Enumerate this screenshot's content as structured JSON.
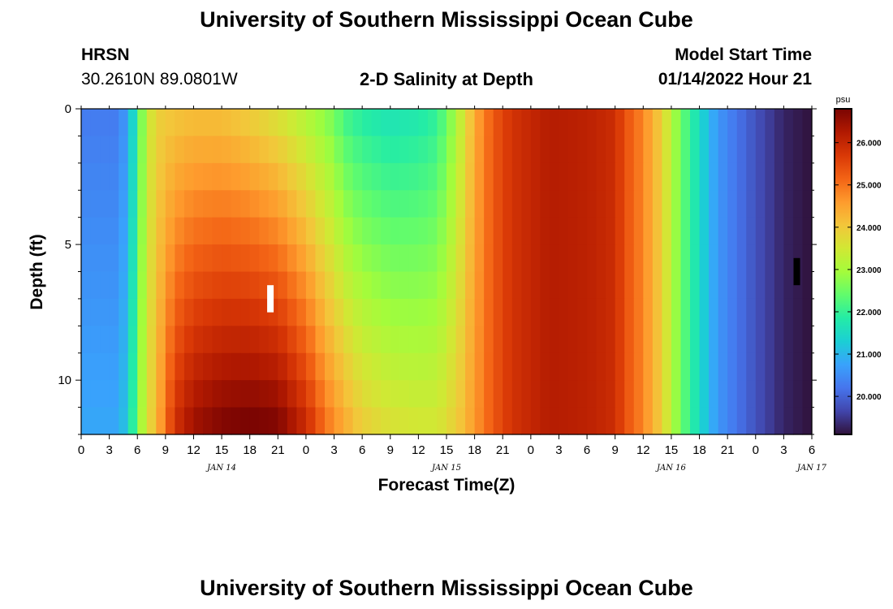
{
  "header": {
    "title": "University of Southern Mississippi Ocean Cube",
    "station": "HRSN",
    "coords": "30.2610N  89.0801W",
    "subtitle": "2-D Salinity at Depth",
    "model_start_label": "Model Start Time",
    "model_start_value": "01/14/2022 Hour 21"
  },
  "footer": {
    "title": "University of Southern Mississippi Ocean Cube"
  },
  "chart_data": {
    "type": "heatmap",
    "title": "2-D Salinity at Depth",
    "xlabel": "Forecast Time(Z)",
    "ylabel": "Depth (ft)",
    "colorbar_unit": "psu",
    "x_tick_labels": [
      "0",
      "3",
      "6",
      "9",
      "12",
      "15",
      "18",
      "21",
      "0",
      "3",
      "6",
      "9",
      "12",
      "15",
      "18",
      "21",
      "0",
      "3",
      "6",
      "9",
      "12",
      "15",
      "18",
      "21",
      "0",
      "3",
      "6"
    ],
    "date_labels": [
      {
        "label": "JAN 14",
        "hour": 15
      },
      {
        "label": "JAN 15",
        "hour": 39
      },
      {
        "label": "JAN 16",
        "hour": 63
      },
      {
        "label": "JAN 17",
        "hour": 78
      }
    ],
    "x_range_hours": [
      0,
      78
    ],
    "y_ticks": [
      0,
      5,
      10
    ],
    "y_range_ft": [
      0,
      12
    ],
    "colorbar_ticks": [
      "20.000",
      "21.000",
      "22.000",
      "23.000",
      "24.000",
      "25.000",
      "26.000"
    ],
    "color_range": [
      19.1,
      26.8
    ],
    "colormap": [
      "#30123b",
      "#4145ab",
      "#4675ed",
      "#39a2fc",
      "#1bcfd4",
      "#24eca6",
      "#61fc6c",
      "#a4fc3b",
      "#d1e834",
      "#f3c63a",
      "#fe9b2d",
      "#f36315",
      "#d93806",
      "#b11901",
      "#7a0402"
    ],
    "depth_levels_ft": [
      0.5,
      1.5,
      2.5,
      3.5,
      4.5,
      5.5,
      6.5,
      7.5,
      8.5,
      9.5,
      10.5,
      11.5
    ],
    "surface_profile": {
      "hours": [
        0,
        4,
        5,
        5.5,
        6,
        7,
        8,
        10,
        12,
        15,
        18,
        21,
        24,
        27,
        28,
        30,
        33,
        36,
        38,
        40,
        42,
        44,
        46,
        48,
        50,
        54,
        57,
        58,
        60,
        62,
        63,
        64,
        66,
        68,
        72,
        75,
        78
      ],
      "salinity": [
        20.3,
        20.3,
        20.8,
        21.4,
        22.1,
        23.3,
        23.9,
        24.1,
        24.2,
        24.2,
        24.0,
        23.7,
        23.2,
        22.6,
        22.2,
        21.9,
        21.7,
        21.8,
        22.0,
        23.0,
        24.4,
        25.3,
        25.8,
        26.0,
        26.2,
        26.1,
        25.9,
        25.4,
        24.8,
        23.9,
        23.2,
        22.5,
        21.5,
        20.6,
        19.8,
        19.3,
        19.1
      ]
    },
    "deep_profile": {
      "hours": [
        0,
        4,
        5,
        5.5,
        6,
        7,
        8,
        9,
        10,
        12,
        15,
        18,
        21,
        24,
        26,
        28,
        30,
        33,
        36,
        38,
        40,
        42,
        44,
        46,
        48,
        50,
        54,
        57,
        58,
        60,
        62,
        63,
        64,
        66,
        68,
        72,
        75,
        78
      ],
      "salinity": [
        20.8,
        20.8,
        21.3,
        21.9,
        22.6,
        23.6,
        24.2,
        25.0,
        25.8,
        26.4,
        26.7,
        26.8,
        26.7,
        25.9,
        25.0,
        24.4,
        23.9,
        23.6,
        23.5,
        23.5,
        23.9,
        24.6,
        25.3,
        25.8,
        26.0,
        26.2,
        26.1,
        25.9,
        25.4,
        24.8,
        23.9,
        23.2,
        22.5,
        21.5,
        20.6,
        19.8,
        19.3,
        19.1
      ]
    },
    "markers": [
      {
        "hour": 20.2,
        "depth_top_ft": 6.5,
        "depth_bottom_ft": 7.5,
        "color": "#ffffff"
      },
      {
        "hour": 76.4,
        "depth_top_ft": 5.5,
        "depth_bottom_ft": 6.5,
        "color": "#000000"
      }
    ]
  }
}
